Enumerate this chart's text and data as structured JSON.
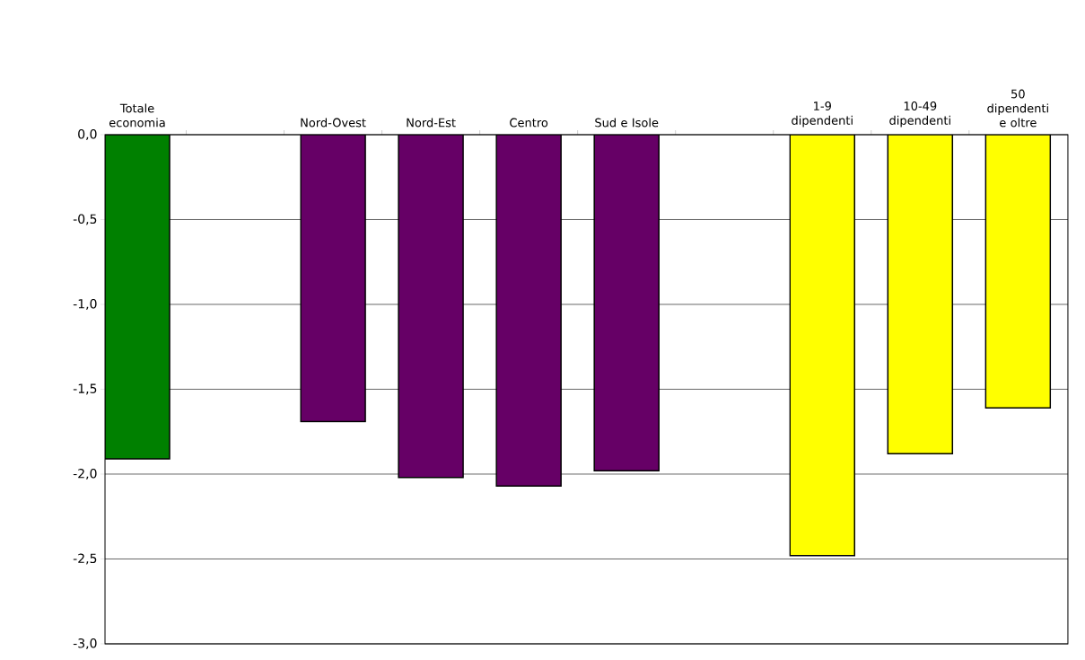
{
  "chart_data": {
    "type": "bar",
    "categories": [
      "Totale economia",
      null,
      "Nord-Ovest",
      "Nord-Est",
      "Centro",
      "Sud e Isole",
      null,
      "1-9 dipendenti",
      "10-49 dipendenti",
      "50 dipendenti e oltre"
    ],
    "values": [
      -1.91,
      null,
      -1.69,
      -2.02,
      -2.07,
      -1.98,
      null,
      -2.48,
      -1.88,
      -1.61
    ],
    "colors": [
      "#008000",
      null,
      "#660066",
      "#660066",
      "#660066",
      "#660066",
      null,
      "#ffff00",
      "#ffff00",
      "#ffff00"
    ],
    "ylim": [
      -3,
      0
    ],
    "yticks": [
      {
        "value": 0,
        "label": "0,0"
      },
      {
        "value": -0.5,
        "label": "-0,5"
      },
      {
        "value": -1,
        "label": "-1,0"
      },
      {
        "value": -1.5,
        "label": "-1,5"
      },
      {
        "value": -2,
        "label": "-2,0"
      },
      {
        "value": -2.5,
        "label": "-2,5"
      },
      {
        "value": -3,
        "label": "-3,0"
      }
    ],
    "grid": "y"
  }
}
